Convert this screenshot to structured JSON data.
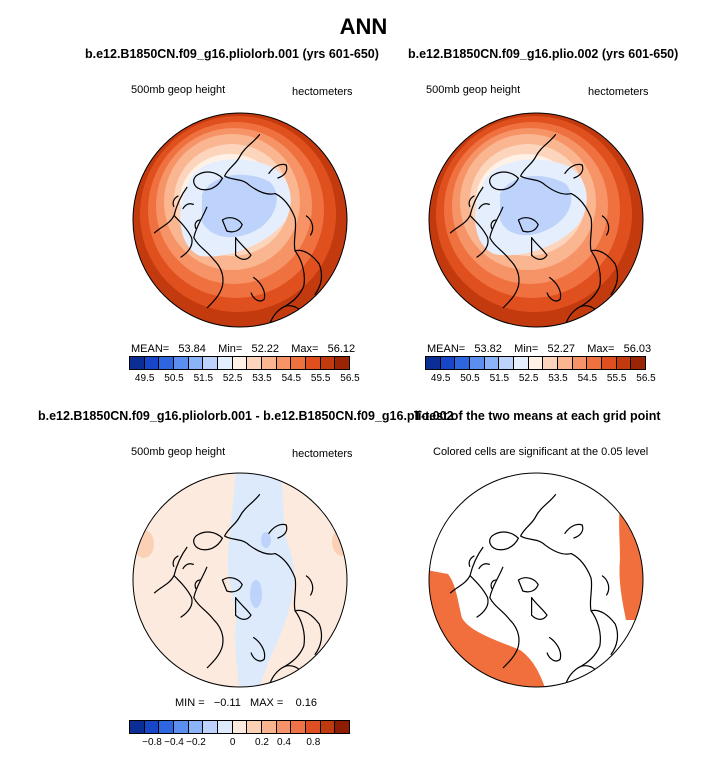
{
  "main_title": "ANN",
  "colors": {
    "abs_scale": [
      "#0a2d96",
      "#1846c8",
      "#2e66e0",
      "#5a8ff0",
      "#8bb3f7",
      "#bdd3fb",
      "#e4eefd",
      "#fff1e6",
      "#fdd5bd",
      "#fab690",
      "#f69468",
      "#f07140",
      "#e0501e",
      "#c23a0e",
      "#9b2405"
    ],
    "diff_scale": [
      "#0a2d96",
      "#1846c8",
      "#2e66e0",
      "#5a8ff0",
      "#8bb3f7",
      "#bdd3fb",
      "#dceafc",
      "#fdeade",
      "#fbd1b6",
      "#f8b48f",
      "#f4936a",
      "#ee7148",
      "#de4f24",
      "#bf3a0f",
      "#8e1c03"
    ],
    "significant": "#f06f3c"
  },
  "panels": [
    {
      "id": "p1",
      "title": "b.e12.B1850CN.f09_g16.pliolorb.001 (yrs 601-650)",
      "left_label": "500mb geop height",
      "right_label": "hectometers",
      "stats": {
        "mean_label": "MEAN=",
        "mean": "53.84",
        "min_label": "Min=",
        "min": "52.22",
        "max_label": "Max=",
        "max": "56.12"
      }
    },
    {
      "id": "p2",
      "title": "b.e12.B1850CN.f09_g16.plio.002 (yrs 601-650)",
      "left_label": "500mb geop height",
      "right_label": "hectometers",
      "stats": {
        "mean_label": "MEAN=",
        "mean": "53.82",
        "min_label": "Min=",
        "min": "52.27",
        "max_label": "Max=",
        "max": "56.03"
      }
    },
    {
      "id": "p3",
      "title": "b.e12.B1850CN.f09_g16.pliolorb.001 - b.e12.B1850CN.f09_g16.plio.002",
      "left_label": "500mb geop height",
      "right_label": "hectometers",
      "stats": {
        "min_label": "MIN =",
        "min": "−0.11",
        "max_label": "MAX =",
        "max": "0.16"
      }
    },
    {
      "id": "p4",
      "title": "T-test of the two means at each grid point",
      "left_label": "Colored cells are significant at the 0.05 level"
    }
  ],
  "chart_data": [
    {
      "type": "heatmap",
      "projection": "polar stereographic (north)",
      "title": "b.e12.B1850CN.f09_g16.pliolorb.001 (yrs 601-650)",
      "variable": "500mb geop height",
      "units": "hectometers",
      "mean": 53.84,
      "min": 52.22,
      "max": 56.12,
      "contour_levels": [
        49.5,
        50,
        50.5,
        51,
        51.5,
        52,
        52.5,
        53,
        53.5,
        54,
        54.5,
        55,
        55.5,
        56,
        56.5
      ],
      "colorbar_labels": [
        "49.5",
        "50.5",
        "51.5",
        "52.5",
        "53.5",
        "54.5",
        "55.5",
        "56.5"
      ]
    },
    {
      "type": "heatmap",
      "projection": "polar stereographic (north)",
      "title": "b.e12.B1850CN.f09_g16.plio.002 (yrs 601-650)",
      "variable": "500mb geop height",
      "units": "hectometers",
      "mean": 53.82,
      "min": 52.27,
      "max": 56.03,
      "contour_levels": [
        49.5,
        50,
        50.5,
        51,
        51.5,
        52,
        52.5,
        53,
        53.5,
        54,
        54.5,
        55,
        55.5,
        56,
        56.5
      ],
      "colorbar_labels": [
        "49.5",
        "50.5",
        "51.5",
        "52.5",
        "53.5",
        "54.5",
        "55.5",
        "56.5"
      ]
    },
    {
      "type": "heatmap",
      "projection": "polar stereographic (north)",
      "title": "b.e12.B1850CN.f09_g16.pliolorb.001 - b.e12.B1850CN.f09_g16.plio.002",
      "variable": "500mb geop height",
      "units": "hectometers",
      "min": -0.11,
      "max": 0.16,
      "contour_levels": [
        -0.8,
        -0.6,
        -0.4,
        -0.3,
        -0.2,
        -0.1,
        0,
        0.1,
        0.2,
        0.3,
        0.4,
        0.6,
        0.8
      ],
      "colorbar_labels": [
        "−0.8",
        "−0.4",
        "−0.2",
        "0",
        "0.2",
        "0.4",
        "0.8"
      ]
    },
    {
      "type": "heatmap",
      "projection": "polar stereographic (north)",
      "title": "T-test of the two means at each grid point",
      "note": "Colored cells are significant at the 0.05 level",
      "significance_level": 0.05
    }
  ]
}
